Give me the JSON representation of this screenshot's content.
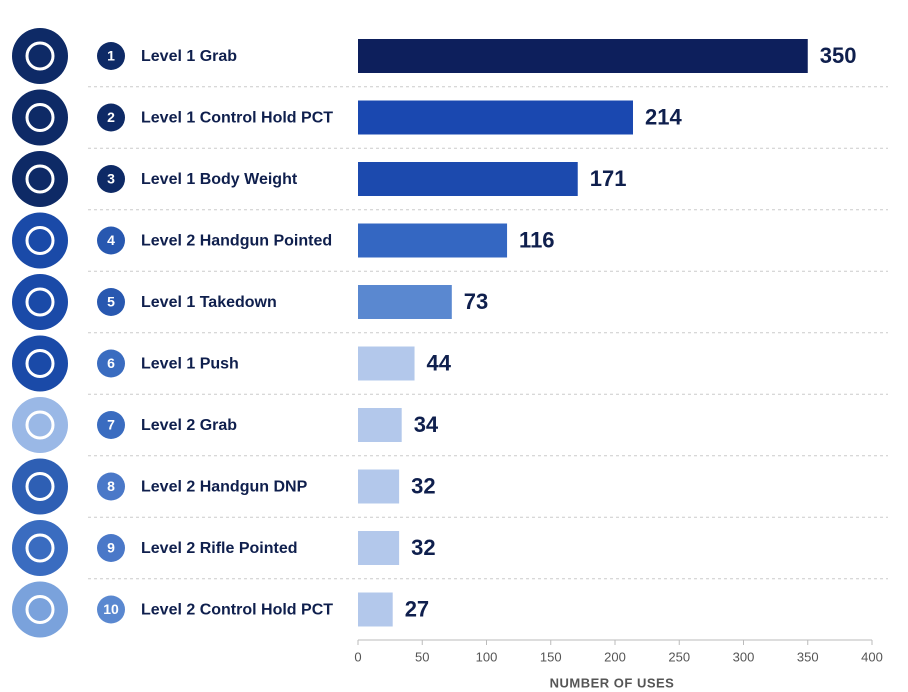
{
  "chart_data": {
    "type": "bar",
    "orientation": "horizontal",
    "x_label": "NUMBER OF USES",
    "ranks": [
      1,
      2,
      3,
      4,
      5,
      6,
      7,
      8,
      9,
      10
    ],
    "categories": [
      "Level 1 Grab",
      "Level 1 Control Hold PCT",
      "Level 1 Body Weight",
      "Level 2 Handgun Pointed",
      "Level 1 Takedown",
      "Level 1 Push",
      "Level 2 Grab",
      "Level 2 Handgun DNP",
      "Level 2 Rifle Pointed",
      "Level 2 Control Hold PCT"
    ],
    "values": [
      350,
      214,
      171,
      116,
      73,
      44,
      34,
      32,
      32,
      27
    ],
    "colors": [
      "#0d1f5c",
      "#1a48b0",
      "#1c4aae",
      "#3467c2",
      "#5a88d0",
      "#b3c8eb",
      "#b3c8eb",
      "#b3c8eb",
      "#b3c8eb",
      "#b3c8eb"
    ],
    "xlim": [
      0,
      400
    ],
    "xticks": [
      0,
      50,
      100,
      150,
      200,
      250,
      300,
      350,
      400
    ],
    "grid": true
  }
}
